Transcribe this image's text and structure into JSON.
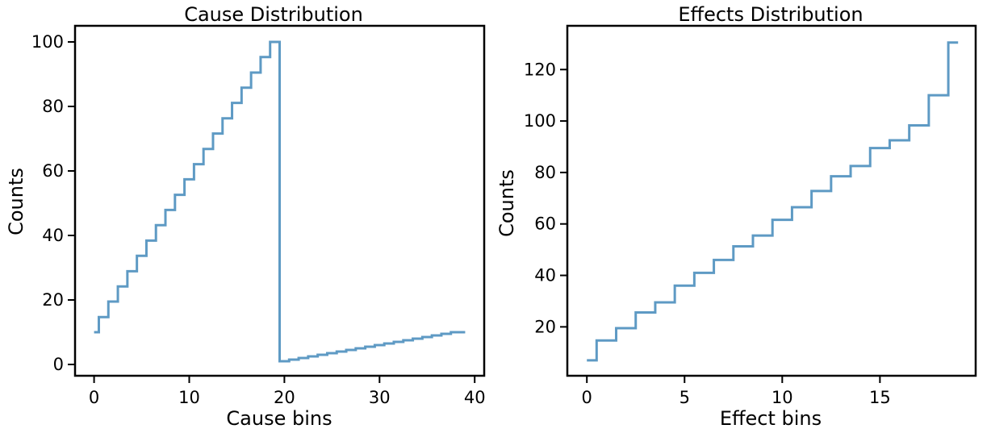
{
  "chart_data": [
    {
      "type": "line",
      "drawstyle": "steps-mid",
      "title": "Cause Distribution",
      "xlabel": "Cause bins",
      "ylabel": "Counts",
      "x": [
        0,
        1,
        2,
        3,
        4,
        5,
        6,
        7,
        8,
        9,
        10,
        11,
        12,
        13,
        14,
        15,
        16,
        17,
        18,
        19,
        20,
        21,
        22,
        23,
        24,
        25,
        26,
        27,
        28,
        29,
        30,
        31,
        32,
        33,
        34,
        35,
        36,
        37,
        38,
        39
      ],
      "values": [
        10,
        14.7,
        19.5,
        24.2,
        28.9,
        33.7,
        38.4,
        43.2,
        47.9,
        52.6,
        57.4,
        62.1,
        66.8,
        71.6,
        76.3,
        81.1,
        85.8,
        90.5,
        95.3,
        100,
        1,
        1.5,
        2,
        2.5,
        3,
        3.5,
        4,
        4.5,
        5,
        5.5,
        6,
        6.5,
        7,
        7.5,
        8,
        8.5,
        9,
        9.5,
        10,
        10
      ],
      "xlim": [
        -2,
        41
      ],
      "ylim": [
        -3.5,
        105
      ],
      "xticks": [
        "0",
        "10",
        "20",
        "30",
        "40"
      ],
      "yticks": [
        "0",
        "20",
        "40",
        "60",
        "80",
        "100"
      ],
      "grid": false,
      "color": "#5e9ac4"
    },
    {
      "type": "line",
      "drawstyle": "steps-mid",
      "title": "Effects Distribution",
      "xlabel": "Effect bins",
      "ylabel": "Counts",
      "x": [
        0,
        1,
        2,
        3,
        4,
        5,
        6,
        7,
        8,
        9,
        10,
        11,
        12,
        13,
        14,
        15,
        16,
        17,
        18,
        19
      ],
      "values": [
        7,
        14.7,
        19.5,
        25.6,
        29.5,
        36,
        41,
        46,
        51.3,
        55.5,
        61.6,
        66.5,
        72.8,
        78.5,
        82.5,
        89.5,
        92.5,
        98.3,
        110,
        130.5
      ],
      "xlim": [
        -1,
        19.9
      ],
      "ylim": [
        1,
        137
      ],
      "xticks": [
        "0",
        "5",
        "10",
        "15"
      ],
      "yticks": [
        "20",
        "40",
        "60",
        "80",
        "100",
        "120"
      ],
      "grid": false,
      "color": "#5e9ac4"
    }
  ]
}
